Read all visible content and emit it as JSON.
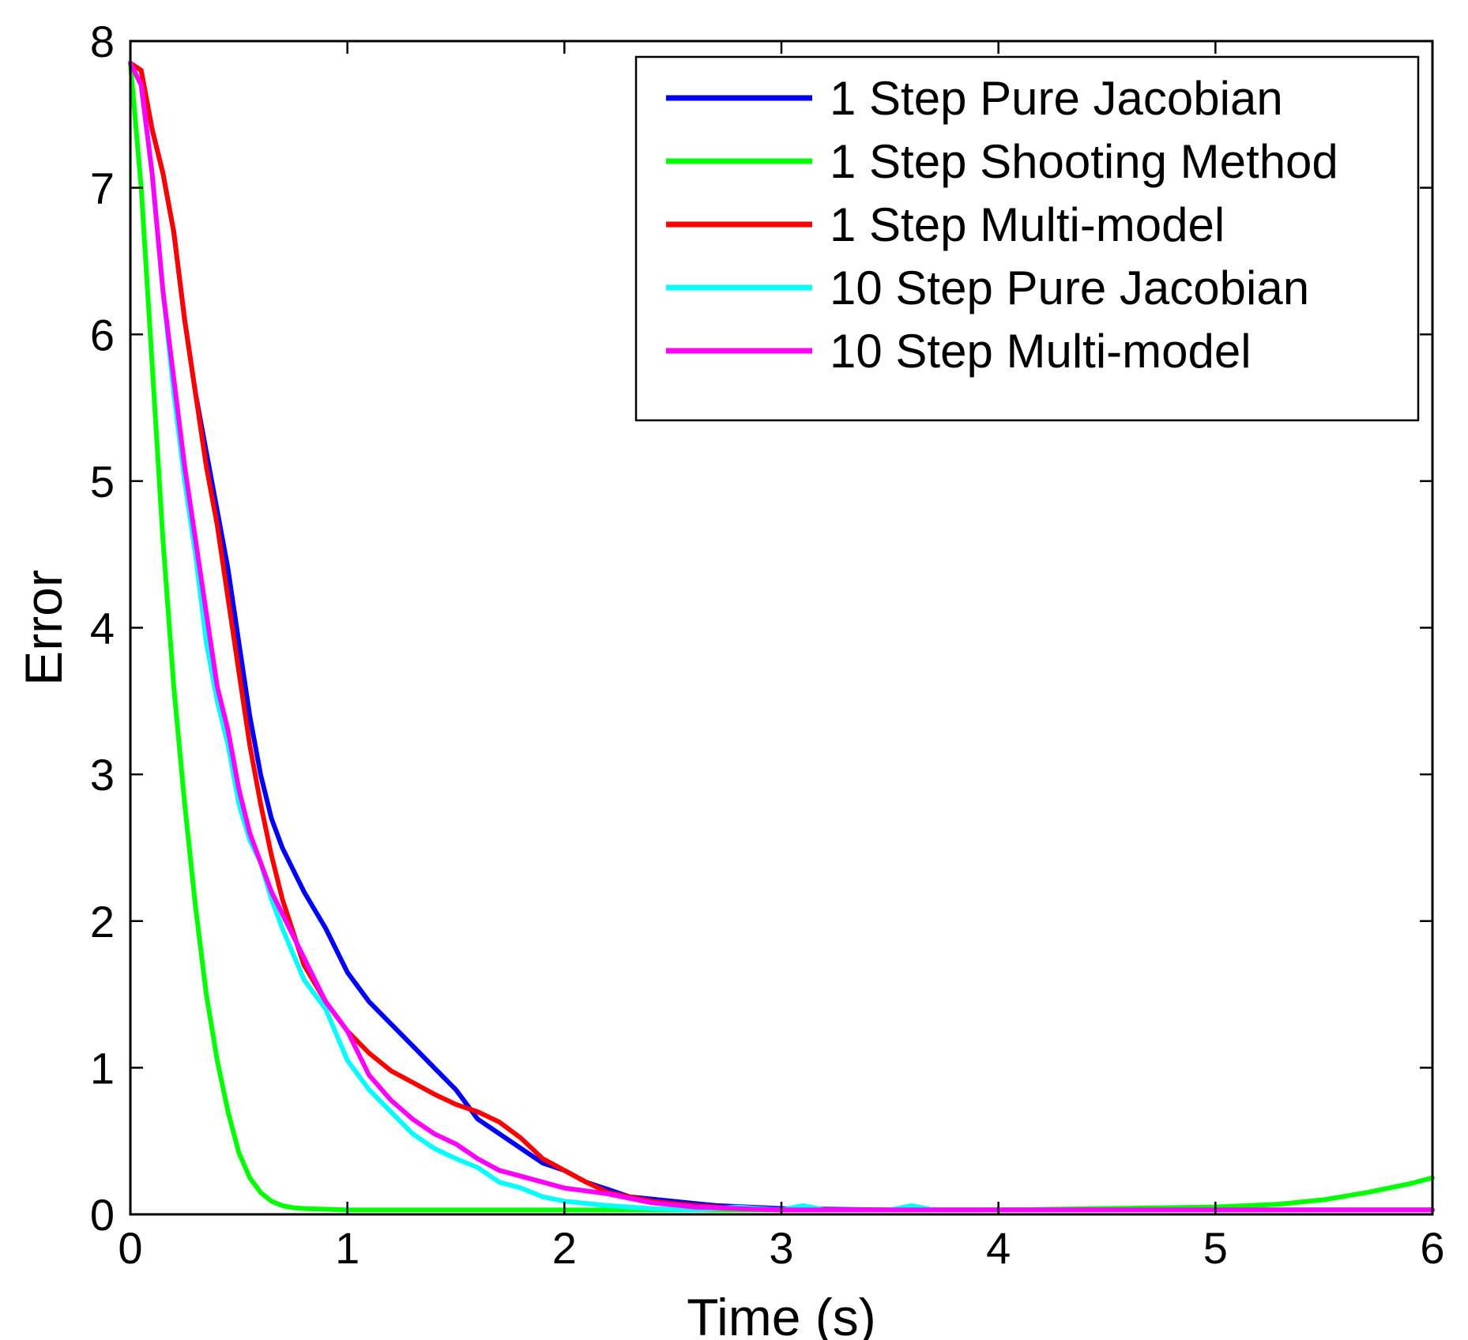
{
  "chart_data": {
    "type": "line",
    "title": "",
    "xlabel": "Time (s)",
    "ylabel": "Error",
    "xlim": [
      0,
      6
    ],
    "ylim": [
      0,
      8
    ],
    "xticks": [
      0,
      1,
      2,
      3,
      4,
      5,
      6
    ],
    "yticks": [
      0,
      1,
      2,
      3,
      4,
      5,
      6,
      7,
      8
    ],
    "grid": false,
    "legend_position": "top-right",
    "series": [
      {
        "name": "1 Step Pure Jacobian",
        "color": "#0000ff",
        "x": [
          0,
          0.05,
          0.1,
          0.15,
          0.2,
          0.25,
          0.3,
          0.35,
          0.4,
          0.45,
          0.5,
          0.55,
          0.6,
          0.65,
          0.7,
          0.8,
          0.9,
          1.0,
          1.1,
          1.2,
          1.3,
          1.4,
          1.5,
          1.6,
          1.7,
          1.8,
          1.9,
          2.0,
          2.1,
          2.2,
          2.3,
          2.5,
          2.7,
          3.0,
          3.5,
          4.0,
          5.0,
          6.0
        ],
        "y": [
          7.85,
          7.8,
          7.4,
          7.1,
          6.7,
          6.1,
          5.6,
          5.2,
          4.8,
          4.4,
          3.9,
          3.4,
          3.0,
          2.7,
          2.5,
          2.2,
          1.95,
          1.65,
          1.45,
          1.3,
          1.15,
          1.0,
          0.85,
          0.65,
          0.55,
          0.45,
          0.35,
          0.3,
          0.22,
          0.17,
          0.12,
          0.09,
          0.06,
          0.04,
          0.03,
          0.03,
          0.03,
          0.03
        ]
      },
      {
        "name": "1 Step Shooting Method",
        "color": "#00ff00",
        "x": [
          0,
          0.05,
          0.1,
          0.15,
          0.2,
          0.25,
          0.3,
          0.35,
          0.4,
          0.45,
          0.5,
          0.55,
          0.6,
          0.65,
          0.7,
          0.75,
          0.8,
          0.9,
          1.0,
          1.2,
          1.5,
          2.0,
          3.0,
          4.0,
          5.0,
          5.3,
          5.5,
          5.7,
          5.9,
          6.0
        ],
        "y": [
          7.85,
          7.0,
          5.8,
          4.6,
          3.6,
          2.8,
          2.1,
          1.5,
          1.05,
          0.7,
          0.42,
          0.25,
          0.15,
          0.09,
          0.06,
          0.045,
          0.04,
          0.035,
          0.03,
          0.03,
          0.03,
          0.03,
          0.03,
          0.03,
          0.05,
          0.07,
          0.1,
          0.15,
          0.21,
          0.25
        ]
      },
      {
        "name": "1 Step Multi-model",
        "color": "#ff0000",
        "x": [
          0,
          0.05,
          0.1,
          0.15,
          0.2,
          0.25,
          0.3,
          0.35,
          0.4,
          0.45,
          0.5,
          0.55,
          0.6,
          0.65,
          0.7,
          0.8,
          0.9,
          1.0,
          1.1,
          1.2,
          1.3,
          1.4,
          1.5,
          1.6,
          1.7,
          1.8,
          1.9,
          2.0,
          2.1,
          2.2,
          2.4,
          2.6,
          2.8,
          3.0,
          3.5,
          4.0,
          5.0,
          6.0
        ],
        "y": [
          7.85,
          7.8,
          7.4,
          7.1,
          6.7,
          6.1,
          5.6,
          5.1,
          4.7,
          4.2,
          3.7,
          3.2,
          2.8,
          2.45,
          2.15,
          1.7,
          1.45,
          1.25,
          1.1,
          0.98,
          0.9,
          0.82,
          0.75,
          0.7,
          0.63,
          0.52,
          0.38,
          0.3,
          0.22,
          0.15,
          0.09,
          0.06,
          0.04,
          0.03,
          0.03,
          0.03,
          0.03,
          0.03
        ]
      },
      {
        "name": "10 Step Pure Jacobian",
        "color": "#00ffff",
        "x": [
          0,
          0.05,
          0.1,
          0.15,
          0.2,
          0.25,
          0.3,
          0.35,
          0.4,
          0.45,
          0.5,
          0.55,
          0.6,
          0.65,
          0.7,
          0.8,
          0.9,
          1.0,
          1.1,
          1.2,
          1.3,
          1.4,
          1.5,
          1.6,
          1.7,
          1.8,
          1.9,
          2.0,
          2.2,
          2.4,
          2.6,
          2.8,
          3.0,
          3.1,
          3.2,
          3.5,
          3.6,
          3.7,
          4.0,
          5.0,
          6.0
        ],
        "y": [
          7.85,
          7.7,
          7.1,
          6.3,
          5.6,
          5.0,
          4.5,
          3.9,
          3.5,
          3.2,
          2.8,
          2.55,
          2.4,
          2.15,
          1.95,
          1.6,
          1.4,
          1.05,
          0.85,
          0.7,
          0.55,
          0.45,
          0.38,
          0.32,
          0.22,
          0.18,
          0.12,
          0.09,
          0.06,
          0.04,
          0.03,
          0.05,
          0.03,
          0.06,
          0.03,
          0.03,
          0.06,
          0.03,
          0.03,
          0.03,
          0.03
        ]
      },
      {
        "name": "10 Step Multi-model",
        "color": "#ff00ff",
        "x": [
          0,
          0.05,
          0.1,
          0.15,
          0.2,
          0.25,
          0.3,
          0.35,
          0.4,
          0.45,
          0.5,
          0.55,
          0.6,
          0.65,
          0.7,
          0.8,
          0.9,
          1.0,
          1.1,
          1.2,
          1.3,
          1.4,
          1.5,
          1.6,
          1.7,
          1.8,
          1.9,
          2.0,
          2.2,
          2.4,
          2.6,
          2.8,
          3.0,
          3.5,
          4.0,
          5.0,
          6.0
        ],
        "y": [
          7.85,
          7.7,
          7.1,
          6.3,
          5.7,
          5.1,
          4.6,
          4.1,
          3.6,
          3.3,
          2.9,
          2.6,
          2.4,
          2.2,
          2.05,
          1.75,
          1.45,
          1.25,
          0.95,
          0.78,
          0.65,
          0.55,
          0.48,
          0.38,
          0.3,
          0.26,
          0.22,
          0.18,
          0.14,
          0.08,
          0.05,
          0.04,
          0.03,
          0.03,
          0.03,
          0.03,
          0.03
        ]
      }
    ]
  }
}
